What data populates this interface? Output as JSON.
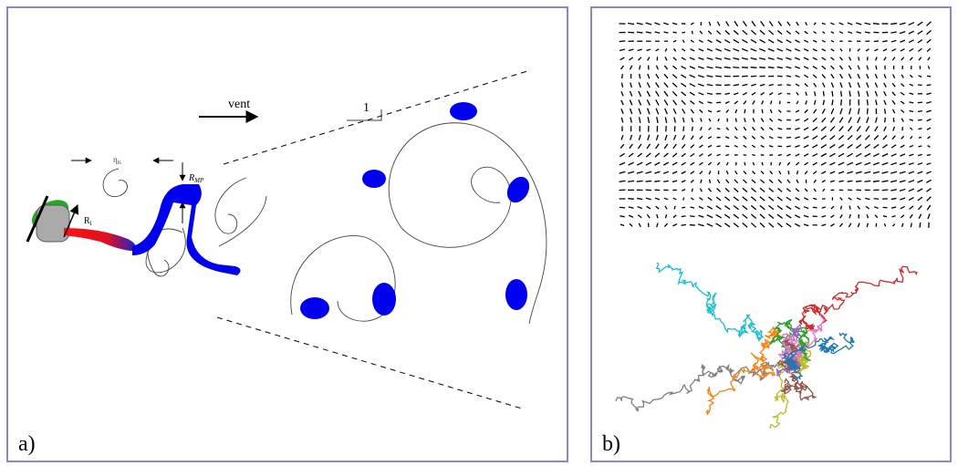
{
  "panel_a": {
    "label": "a)",
    "vent": "vent",
    "slope": "1",
    "eta_k": {
      "symbol": "η",
      "subscript": "K"
    },
    "r_mp": {
      "symbol": "R",
      "subscript": "MP"
    },
    "r_i": {
      "symbol": "R",
      "subscript": "i"
    }
  },
  "panel_b": {
    "label": "b)"
  }
}
